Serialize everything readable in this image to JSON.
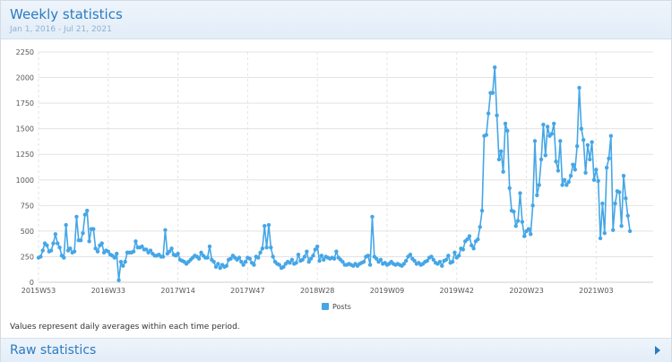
{
  "header": {
    "title": "Weekly statistics",
    "subtitle": "Jan 1, 2016 - Jul 21, 2021"
  },
  "note": "Values represent daily averages within each time period.",
  "footer": {
    "title": "Raw statistics"
  },
  "colors": {
    "series": "#45a6e6",
    "title": "#2b7bbf",
    "grid": "#e3e3e3"
  },
  "icons": {
    "footer_expand": "chevron-right-icon"
  },
  "chart_data": {
    "type": "line",
    "xlabel": "",
    "ylabel": "",
    "ylim": [
      0,
      2250
    ],
    "yticks": [
      0,
      250,
      500,
      750,
      1000,
      1250,
      1500,
      1750,
      2000,
      2250
    ],
    "xticks": [
      {
        "x": 0,
        "label": "2015W53"
      },
      {
        "x": 33,
        "label": "2016W33"
      },
      {
        "x": 66,
        "label": "2017W14"
      },
      {
        "x": 99,
        "label": "2017W47"
      },
      {
        "x": 132,
        "label": "2018W28"
      },
      {
        "x": 165,
        "label": "2019W09"
      },
      {
        "x": 198,
        "label": "2019W42"
      },
      {
        "x": 231,
        "label": "2020W23"
      },
      {
        "x": 264,
        "label": "2021W03"
      }
    ],
    "xlim": [
      0,
      291
    ],
    "grid": true,
    "legend": "bottom-center",
    "series": [
      {
        "name": "Posts",
        "values": [
          240,
          250,
          310,
          380,
          360,
          300,
          310,
          380,
          470,
          380,
          340,
          260,
          240,
          560,
          310,
          330,
          290,
          300,
          640,
          410,
          410,
          480,
          660,
          700,
          400,
          520,
          520,
          330,
          300,
          360,
          380,
          290,
          310,
          300,
          270,
          260,
          240,
          280,
          20,
          200,
          160,
          200,
          290,
          290,
          290,
          300,
          400,
          340,
          340,
          350,
          320,
          320,
          290,
          310,
          280,
          260,
          260,
          270,
          250,
          250,
          510,
          280,
          300,
          330,
          270,
          260,
          280,
          220,
          210,
          200,
          180,
          200,
          220,
          240,
          260,
          250,
          230,
          290,
          260,
          240,
          240,
          350,
          220,
          200,
          150,
          180,
          140,
          170,
          150,
          160,
          220,
          230,
          260,
          240,
          220,
          240,
          200,
          170,
          200,
          240,
          230,
          190,
          170,
          250,
          240,
          290,
          330,
          550,
          340,
          560,
          340,
          250,
          200,
          180,
          170,
          140,
          150,
          180,
          200,
          190,
          220,
          180,
          190,
          270,
          210,
          220,
          250,
          300,
          200,
          230,
          260,
          320,
          350,
          210,
          260,
          220,
          250,
          240,
          230,
          240,
          230,
          300,
          240,
          220,
          200,
          170,
          170,
          180,
          170,
          160,
          180,
          160,
          180,
          190,
          200,
          250,
          260,
          170,
          640,
          250,
          230,
          200,
          220,
          180,
          190,
          170,
          180,
          200,
          180,
          170,
          180,
          170,
          160,
          180,
          210,
          250,
          270,
          230,
          210,
          180,
          190,
          170,
          180,
          200,
          210,
          240,
          250,
          220,
          190,
          180,
          200,
          160,
          210,
          220,
          260,
          190,
          200,
          290,
          240,
          260,
          330,
          320,
          400,
          420,
          450,
          360,
          330,
          400,
          420,
          540,
          700,
          1430,
          1440,
          1650,
          1850,
          1850,
          2100,
          1630,
          1200,
          1280,
          1080,
          1550,
          1480,
          920,
          700,
          690,
          550,
          600,
          870,
          590,
          450,
          500,
          520,
          470,
          750,
          1380,
          850,
          950,
          1200,
          1540,
          1240,
          1520,
          1430,
          1450,
          1550,
          1180,
          1090,
          1380,
          950,
          1000,
          950,
          980,
          1040,
          1150,
          1100,
          1330,
          1900,
          1500,
          1390,
          1070,
          1340,
          1200,
          1370,
          1000,
          1100,
          990,
          430,
          770,
          480,
          1120,
          1210,
          1430,
          510,
          770,
          890,
          880,
          550,
          1040,
          820,
          650,
          500
        ]
      }
    ]
  }
}
